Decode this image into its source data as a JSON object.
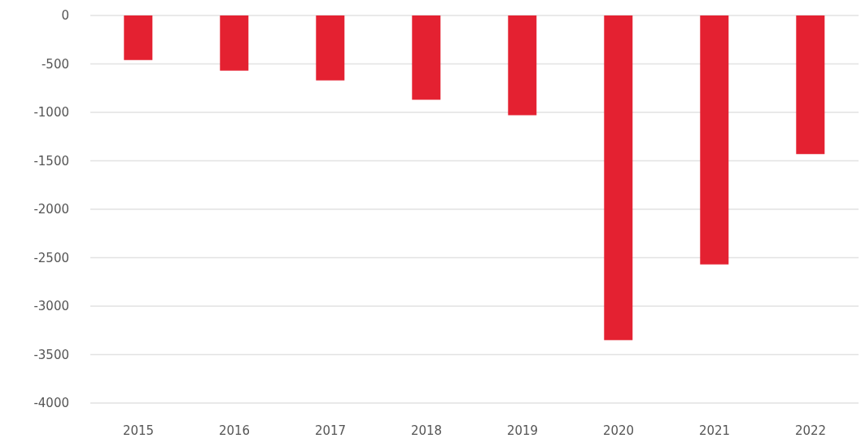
{
  "chart_data": {
    "type": "bar",
    "categories": [
      "2015",
      "2016",
      "2017",
      "2018",
      "2019",
      "2020",
      "2021",
      "2022"
    ],
    "values": [
      -460,
      -570,
      -670,
      -870,
      -1030,
      -3350,
      -2570,
      -1430
    ],
    "color": "#e42131",
    "ylim": [
      -4000,
      0
    ],
    "yticks": [
      -4000,
      -3500,
      -3000,
      -2500,
      -2000,
      -1500,
      -1000,
      -500,
      0
    ],
    "grid": "y"
  }
}
